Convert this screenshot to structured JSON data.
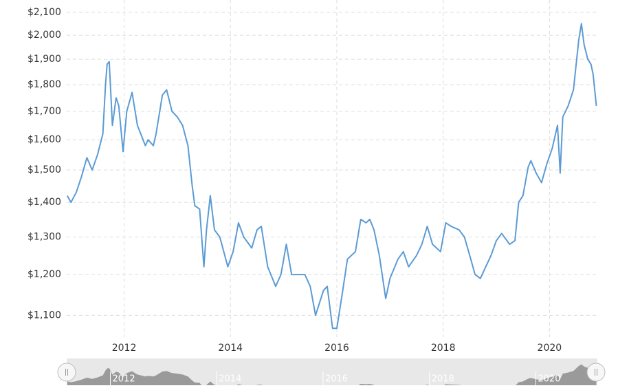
{
  "chart_data": {
    "type": "line",
    "x": [
      2010.93,
      2011.0,
      2011.1,
      2011.2,
      2011.3,
      2011.4,
      2011.5,
      2011.6,
      2011.65,
      2011.68,
      2011.72,
      2011.78,
      2011.85,
      2011.9,
      2011.98,
      2012.05,
      2012.15,
      2012.25,
      2012.4,
      2012.45,
      2012.55,
      2012.6,
      2012.72,
      2012.8,
      2012.9,
      2013.0,
      2013.1,
      2013.2,
      2013.28,
      2013.33,
      2013.42,
      2013.5,
      2013.55,
      2013.62,
      2013.7,
      2013.8,
      2013.95,
      2014.05,
      2014.15,
      2014.25,
      2014.4,
      2014.5,
      2014.58,
      2014.7,
      2014.85,
      2014.95,
      2015.05,
      2015.15,
      2015.3,
      2015.4,
      2015.5,
      2015.6,
      2015.75,
      2015.82,
      2015.92,
      2016.0,
      2016.1,
      2016.2,
      2016.35,
      2016.45,
      2016.55,
      2016.62,
      2016.7,
      2016.8,
      2016.92,
      2017.0,
      2017.15,
      2017.25,
      2017.35,
      2017.5,
      2017.6,
      2017.7,
      2017.8,
      2017.95,
      2018.05,
      2018.15,
      2018.3,
      2018.4,
      2018.5,
      2018.6,
      2018.7,
      2018.8,
      2018.9,
      2019.0,
      2019.1,
      2019.25,
      2019.35,
      2019.42,
      2019.5,
      2019.6,
      2019.65,
      2019.75,
      2019.85,
      2019.95,
      2020.05,
      2020.15,
      2020.2,
      2020.25,
      2020.35,
      2020.45,
      2020.55,
      2020.6,
      2020.65,
      2020.72,
      2020.78,
      2020.82,
      2020.88
    ],
    "series": [
      {
        "color": "#5b9bd5",
        "values": [
          1420,
          1400,
          1430,
          1480,
          1540,
          1500,
          1550,
          1620,
          1800,
          1880,
          1890,
          1650,
          1750,
          1720,
          1560,
          1700,
          1770,
          1650,
          1580,
          1600,
          1580,
          1620,
          1760,
          1780,
          1700,
          1680,
          1650,
          1580,
          1450,
          1390,
          1380,
          1220,
          1320,
          1420,
          1320,
          1300,
          1220,
          1260,
          1340,
          1300,
          1270,
          1320,
          1330,
          1220,
          1170,
          1200,
          1280,
          1200,
          1200,
          1200,
          1170,
          1100,
          1160,
          1170,
          1070,
          1070,
          1150,
          1240,
          1260,
          1350,
          1340,
          1350,
          1320,
          1250,
          1140,
          1190,
          1240,
          1260,
          1220,
          1250,
          1280,
          1330,
          1280,
          1260,
          1340,
          1330,
          1320,
          1300,
          1250,
          1200,
          1190,
          1220,
          1250,
          1290,
          1310,
          1280,
          1290,
          1400,
          1420,
          1510,
          1530,
          1490,
          1460,
          1520,
          1570,
          1650,
          1490,
          1680,
          1720,
          1780,
          1980,
          2050,
          1960,
          1900,
          1880,
          1840,
          1720
        ]
      }
    ],
    "xlim": [
      2010.92,
      2020.9
    ],
    "xticks": [
      2012,
      2014,
      2016,
      2018,
      2020
    ],
    "ylim": [
      1050,
      2100
    ],
    "log_scale": true,
    "yticks": [
      {
        "value": 1100,
        "label": "$1,100"
      },
      {
        "value": 1200,
        "label": "$1,200"
      },
      {
        "value": 1300,
        "label": "$1,300"
      },
      {
        "value": 1400,
        "label": "$1,400"
      },
      {
        "value": 1500,
        "label": "$1,500"
      },
      {
        "value": 1600,
        "label": "$1,600"
      },
      {
        "value": 1700,
        "label": "$1,700"
      },
      {
        "value": 1800,
        "label": "$1,800"
      },
      {
        "value": 1900,
        "label": "$1,900"
      },
      {
        "value": 2000,
        "label": "$2,000"
      },
      {
        "value": 2100,
        "label": "$2,100"
      }
    ],
    "grid": true
  }
}
